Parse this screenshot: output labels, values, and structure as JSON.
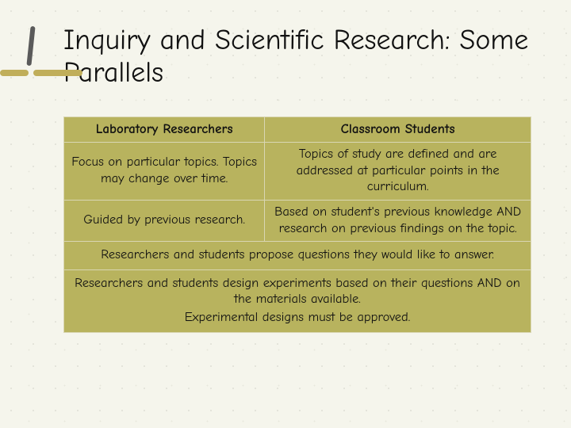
{
  "title": "Inquiry and Scientific Research: Some Parallels",
  "decor": {
    "accent_color": "#c0ae5a",
    "stroke_color": "#5a5a5a",
    "bar_short_width": 36,
    "bar_long_width": 62,
    "bar_gap": 6
  },
  "table": {
    "background_color": "#b8b35e",
    "border_color": "#d9d6b3",
    "header": {
      "left": "Laboratory Researchers",
      "right": "Classroom Students"
    },
    "rows": [
      {
        "left": "Focus on particular topics. Topics may change over time.",
        "right": "Topics of study are defined and are addressed at particular points in the curriculum."
      },
      {
        "left": "Guided by previous research.",
        "right": "Based on student's previous knowledge AND research on previous findings on the topic."
      }
    ],
    "merged_rows": [
      {
        "lines": [
          "Researchers and students propose questions they would like to answer."
        ]
      },
      {
        "lines": [
          "Researchers and students design experiments based on their questions AND on the materials available.",
          "Experimental designs must be approved."
        ]
      }
    ]
  }
}
